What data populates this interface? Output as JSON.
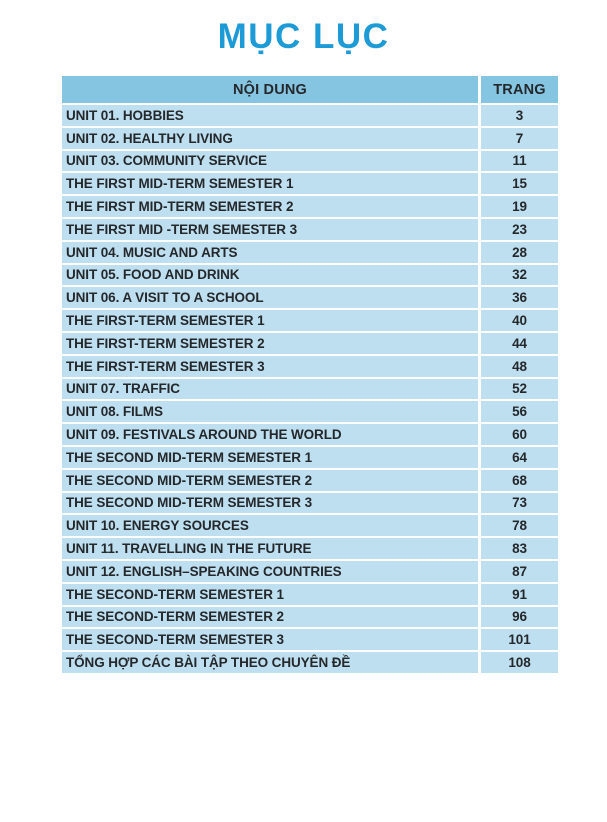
{
  "page": {
    "title": "MỤC LỤC"
  },
  "table": {
    "headers": {
      "content": "NỘI DUNG",
      "page": "TRANG"
    },
    "rows": [
      {
        "content": "UNIT 01. HOBBIES",
        "page": "3"
      },
      {
        "content": "UNIT 02. HEALTHY LIVING",
        "page": "7"
      },
      {
        "content": "UNIT 03. COMMUNITY SERVICE",
        "page": "11"
      },
      {
        "content": "THE FIRST MID-TERM SEMESTER 1",
        "page": "15"
      },
      {
        "content": "THE FIRST MID-TERM SEMESTER 2",
        "page": "19"
      },
      {
        "content": "THE FIRST MID -TERM SEMESTER 3",
        "page": "23"
      },
      {
        "content": "UNIT 04. MUSIC AND ARTS",
        "page": "28"
      },
      {
        "content": "UNIT 05. FOOD AND DRINK",
        "page": "32"
      },
      {
        "content": "UNIT 06. A VISIT TO A SCHOOL",
        "page": "36"
      },
      {
        "content": "THE FIRST-TERM SEMESTER 1",
        "page": "40"
      },
      {
        "content": "THE FIRST-TERM SEMESTER 2",
        "page": "44"
      },
      {
        "content": "THE FIRST-TERM SEMESTER 3",
        "page": "48"
      },
      {
        "content": "UNIT 07. TRAFFIC",
        "page": "52"
      },
      {
        "content": "UNIT 08. FILMS",
        "page": "56"
      },
      {
        "content": "UNIT 09. FESTIVALS AROUND THE WORLD",
        "page": "60"
      },
      {
        "content": "THE SECOND MID-TERM SEMESTER 1",
        "page": "64"
      },
      {
        "content": "THE SECOND MID-TERM SEMESTER 2",
        "page": "68"
      },
      {
        "content": "THE SECOND MID-TERM SEMESTER 3",
        "page": "73"
      },
      {
        "content": "UNIT 10. ENERGY SOURCES",
        "page": "78"
      },
      {
        "content": "UNIT 11. TRAVELLING IN THE FUTURE",
        "page": "83"
      },
      {
        "content": "UNIT 12. ENGLISH–SPEAKING COUNTRIES",
        "page": "87"
      },
      {
        "content": "THE SECOND-TERM SEMESTER 1",
        "page": "91"
      },
      {
        "content": "THE SECOND-TERM SEMESTER 2",
        "page": "96"
      },
      {
        "content": "THE SECOND-TERM SEMESTER 3",
        "page": "101"
      },
      {
        "content": "TỔNG HỢP CÁC BÀI TẬP THEO CHUYÊN ĐỀ",
        "page": "108"
      }
    ]
  },
  "colors": {
    "title": "#1c9bd7",
    "header_bg": "#85c5e2",
    "row_bg": "#bedff0",
    "text": "#25282b"
  }
}
